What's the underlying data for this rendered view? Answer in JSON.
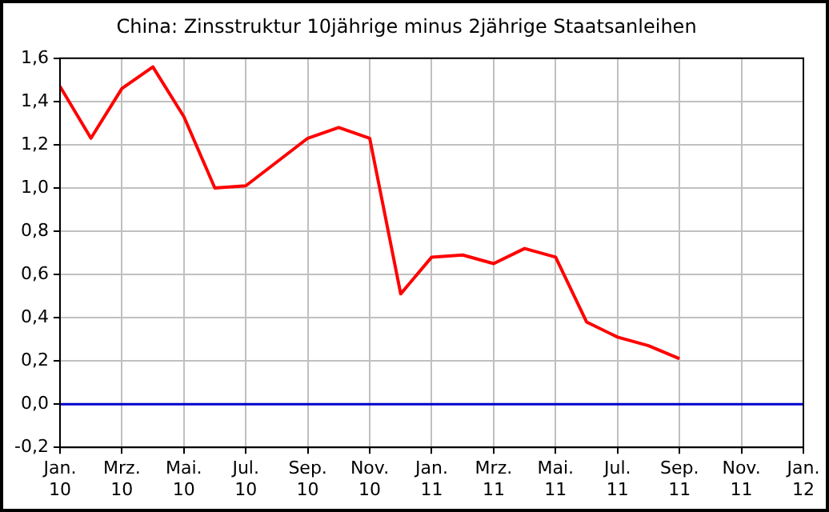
{
  "chart_data": {
    "type": "line",
    "title": "China: Zinsstruktur 10jährige minus 2jährige Staatsanleihen",
    "x": [
      "2010-01",
      "2010-02",
      "2010-03",
      "2010-04",
      "2010-05",
      "2010-06",
      "2010-07",
      "2010-08",
      "2010-09",
      "2010-10",
      "2010-11",
      "2010-12",
      "2011-01",
      "2011-02",
      "2011-03",
      "2011-04",
      "2011-05",
      "2011-06",
      "2011-07",
      "2011-08",
      "2011-09"
    ],
    "series": [
      {
        "color": "#ff0000",
        "values": [
          1.47,
          1.23,
          1.46,
          1.56,
          1.33,
          1.0,
          1.01,
          1.12,
          1.23,
          1.28,
          1.23,
          0.51,
          0.68,
          0.69,
          0.65,
          0.72,
          0.68,
          0.38,
          0.31,
          0.27,
          0.21
        ]
      }
    ],
    "xlim": [
      "2010-01",
      "2012-01"
    ],
    "xticks": [
      {
        "value": "2010-01",
        "label": "Jan. 10"
      },
      {
        "value": "2010-03",
        "label": "Mrz. 10"
      },
      {
        "value": "2010-05",
        "label": "Mai. 10"
      },
      {
        "value": "2010-07",
        "label": "Jul. 10"
      },
      {
        "value": "2010-09",
        "label": "Sep. 10"
      },
      {
        "value": "2010-11",
        "label": "Nov. 10"
      },
      {
        "value": "2011-01",
        "label": "Jan. 11"
      },
      {
        "value": "2011-03",
        "label": "Mrz. 11"
      },
      {
        "value": "2011-05",
        "label": "Mai. 11"
      },
      {
        "value": "2011-07",
        "label": "Jul. 11"
      },
      {
        "value": "2011-09",
        "label": "Sep. 11"
      },
      {
        "value": "2011-11",
        "label": "Nov. 11"
      },
      {
        "value": "2012-01",
        "label": "Jan. 12"
      }
    ],
    "ylim": [
      -0.2,
      1.6
    ],
    "yticks": [
      {
        "value": -0.2,
        "label": "-0,2"
      },
      {
        "value": 0,
        "label": "0,0"
      },
      {
        "value": 0.2,
        "label": "0,2"
      },
      {
        "value": 0.4,
        "label": "0,4"
      },
      {
        "value": 0.6,
        "label": "0,6"
      },
      {
        "value": 0.8,
        "label": "0,8"
      },
      {
        "value": 1.0,
        "label": "1,0"
      },
      {
        "value": 1.2,
        "label": "1,2"
      },
      {
        "value": 1.4,
        "label": "1,4"
      },
      {
        "value": 1.6,
        "label": "1,6"
      }
    ],
    "ref_lines": [
      {
        "axis": "y",
        "value": 0,
        "color": "#0000cc"
      }
    ],
    "grid": true,
    "legend": false,
    "marker": "none",
    "line_style": "solid"
  }
}
